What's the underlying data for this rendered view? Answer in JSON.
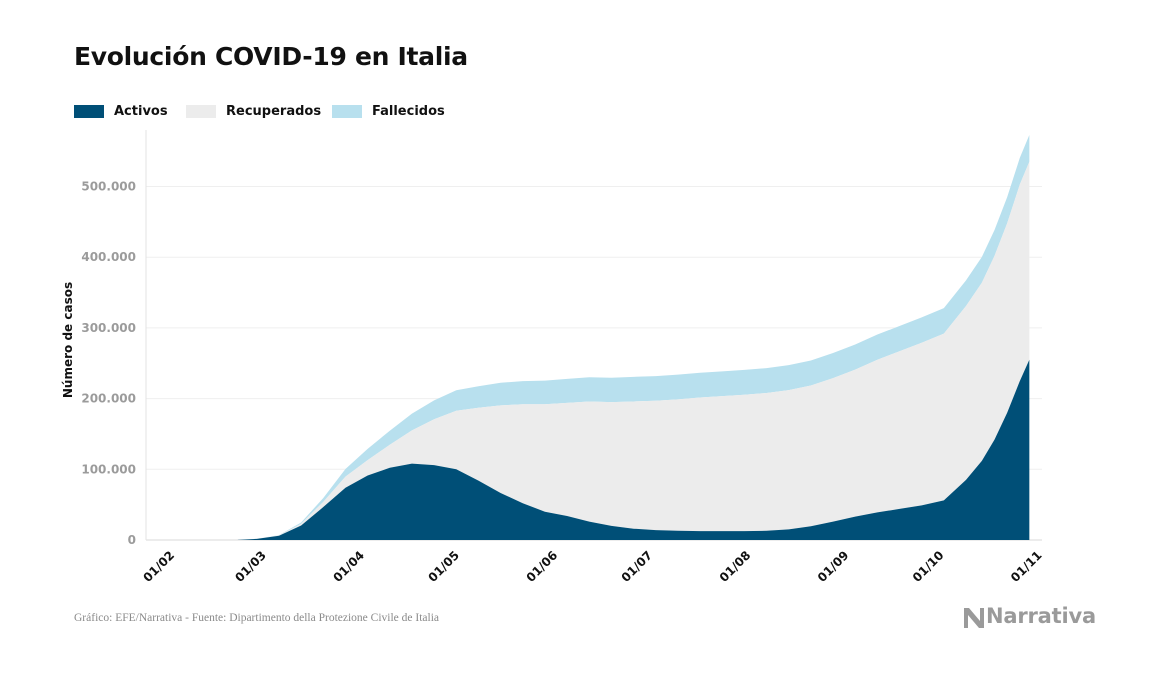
{
  "chart_data": {
    "type": "area",
    "stacked": true,
    "title": "Evolución COVID-19 en Italia",
    "ylabel": "Número de casos",
    "xlabel": "",
    "ylim": [
      0,
      580000
    ],
    "xlim": [
      "2020-01-26",
      "2020-11-04"
    ],
    "yticks": [
      0,
      100000,
      200000,
      300000,
      400000,
      500000
    ],
    "ytick_labels": [
      "0",
      "100.000",
      "200.000",
      "300.000",
      "400.000",
      "500.000"
    ],
    "xticks": [
      "2020-02-01",
      "2020-03-01",
      "2020-04-01",
      "2020-05-01",
      "2020-06-01",
      "2020-07-01",
      "2020-08-01",
      "2020-09-01",
      "2020-10-01",
      "2020-11-01"
    ],
    "xtick_labels": [
      "01/02",
      "01/03",
      "01/04",
      "01/05",
      "01/06",
      "01/07",
      "01/08",
      "01/09",
      "01/10",
      "01/11"
    ],
    "grid": "horizontal",
    "legend_position": "top-left",
    "source": "Gráfico: EFE/Narrativa - Fuente: Dipartimento della Protezione Civile de Italia",
    "logo_text": "Narrativa",
    "x": [
      "2020-02-24",
      "2020-03-01",
      "2020-03-08",
      "2020-03-15",
      "2020-03-22",
      "2020-03-29",
      "2020-04-05",
      "2020-04-12",
      "2020-04-19",
      "2020-04-26",
      "2020-05-03",
      "2020-05-10",
      "2020-05-17",
      "2020-05-24",
      "2020-05-31",
      "2020-06-07",
      "2020-06-14",
      "2020-06-21",
      "2020-06-28",
      "2020-07-05",
      "2020-07-12",
      "2020-07-19",
      "2020-07-26",
      "2020-08-02",
      "2020-08-09",
      "2020-08-16",
      "2020-08-23",
      "2020-08-30",
      "2020-09-06",
      "2020-09-13",
      "2020-09-20",
      "2020-09-27",
      "2020-10-04",
      "2020-10-11",
      "2020-10-16",
      "2020-10-20",
      "2020-10-24",
      "2020-10-28",
      "2020-10-31"
    ],
    "series": [
      {
        "name": "Activos",
        "color": "#004f77",
        "values": [
          200,
          1600,
          6000,
          20600,
          46600,
          73900,
          91200,
          102200,
          108000,
          106000,
          100000,
          84000,
          66500,
          52000,
          40000,
          34000,
          26000,
          20000,
          16000,
          14000,
          13000,
          12500,
          12500,
          12500,
          13000,
          15000,
          19500,
          26000,
          33000,
          39000,
          44000,
          49000,
          56000,
          85000,
          112000,
          142000,
          180000,
          225000,
          255000
        ]
      },
      {
        "name": "Recuperados",
        "color": "#ececec",
        "values": [
          0,
          150,
          600,
          2300,
          7400,
          15700,
          21800,
          32500,
          47000,
          64900,
          82900,
          103000,
          124000,
          140000,
          152000,
          160000,
          170000,
          175000,
          180000,
          183000,
          186000,
          189000,
          191000,
          193000,
          195000,
          197000,
          199000,
          203000,
          208000,
          216000,
          223000,
          230000,
          236000,
          246000,
          252000,
          260000,
          268000,
          278000,
          280000
        ]
      },
      {
        "name": "Fallecidos",
        "color": "#b8e0ee",
        "values": [
          0,
          30,
          360,
          1800,
          5500,
          10800,
          15900,
          19900,
          23700,
          26600,
          28900,
          30500,
          31900,
          32700,
          33400,
          33900,
          34300,
          34600,
          34800,
          34900,
          34950,
          35050,
          35100,
          35150,
          35200,
          35400,
          35450,
          35500,
          35550,
          35650,
          35700,
          35850,
          36000,
          36200,
          36400,
          36600,
          37000,
          37700,
          38000
        ]
      }
    ]
  }
}
